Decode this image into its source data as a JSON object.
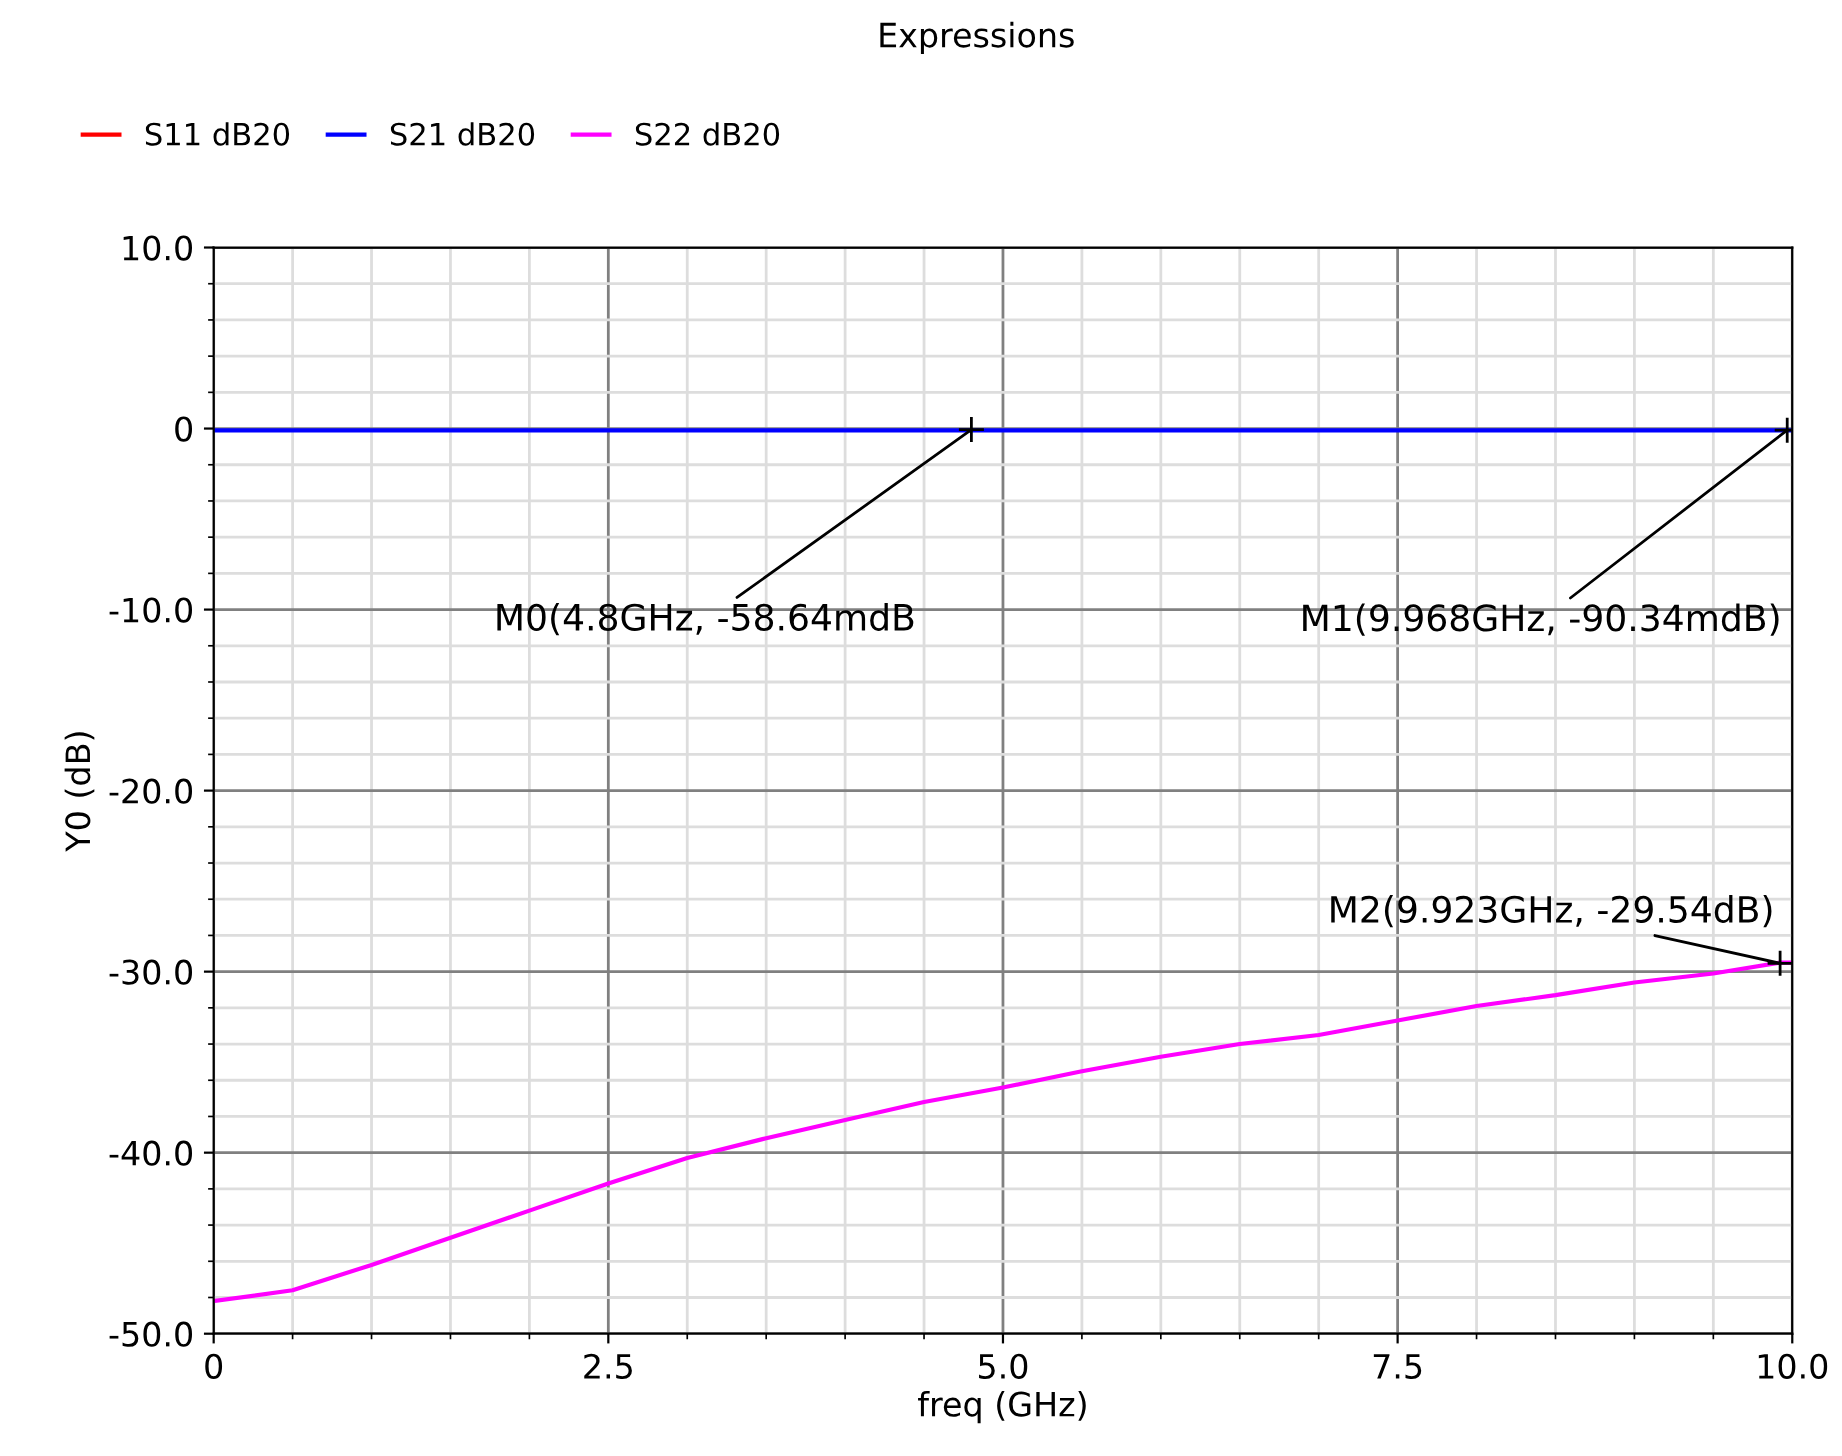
{
  "chart_data": {
    "type": "line",
    "title": "Expressions",
    "xlabel": "freq (GHz)",
    "ylabel": "Y0 (dB)",
    "x": [
      0,
      0.5,
      1,
      1.5,
      2,
      2.5,
      3,
      3.5,
      4,
      4.5,
      5,
      5.5,
      6,
      6.5,
      7,
      7.5,
      8,
      8.5,
      9,
      9.5,
      9.923,
      10
    ],
    "series": [
      {
        "name": "S11 dB20",
        "color": "#ff0000",
        "values": [
          null,
          null,
          null,
          null,
          null,
          null,
          null,
          null,
          null,
          null,
          null,
          null,
          null,
          null,
          null,
          null,
          null,
          null,
          null,
          null,
          null,
          null
        ]
      },
      {
        "name": "S21 dB20",
        "color": "#0000ff",
        "values": [
          -0.1,
          -0.1,
          -0.1,
          -0.1,
          -0.1,
          -0.1,
          -0.1,
          -0.1,
          -0.1,
          -0.1,
          -0.1,
          -0.1,
          -0.1,
          -0.1,
          -0.1,
          -0.1,
          -0.1,
          -0.1,
          -0.1,
          -0.1,
          -0.1,
          -0.1
        ]
      },
      {
        "name": "S22 dB20",
        "color": "#ff00ff",
        "values": [
          -48.2,
          -47.6,
          -46.2,
          -44.7,
          -43.2,
          -41.7,
          -40.3,
          -39.2,
          -38.2,
          -37.2,
          -36.4,
          -35.5,
          -34.7,
          -34.0,
          -33.5,
          -32.7,
          -31.9,
          -31.3,
          -30.6,
          -30.1,
          -29.5,
          -29.5
        ]
      }
    ],
    "xlim": [
      0,
      10
    ],
    "ylim": [
      -50,
      10
    ],
    "xticks": [
      0,
      2.5,
      {
        "value": 5,
        "label": "5.0"
      },
      7.5,
      {
        "value": 10,
        "label": "10.0"
      }
    ],
    "yticks": [
      {
        "value": -50,
        "label": "-50.0"
      },
      {
        "value": -40,
        "label": "-40.0"
      },
      {
        "value": -30,
        "label": "-30.0"
      },
      {
        "value": -20,
        "label": "-20.0"
      },
      {
        "value": -10,
        "label": "-10.0"
      },
      0,
      {
        "value": 10,
        "label": "10.0"
      }
    ],
    "grid": true,
    "legend": "top left",
    "annotations": [
      {
        "text": "M0(4.8GHz, -58.64mdB",
        "x": 4.8,
        "y": -0.05864
      },
      {
        "text": "M1(9.968GHz, -90.34mdB)",
        "x": 9.968,
        "y": -0.09034
      },
      {
        "text": "M2(9.923GHz, -29.54dB)",
        "x": 9.923,
        "y": -29.54
      }
    ]
  }
}
